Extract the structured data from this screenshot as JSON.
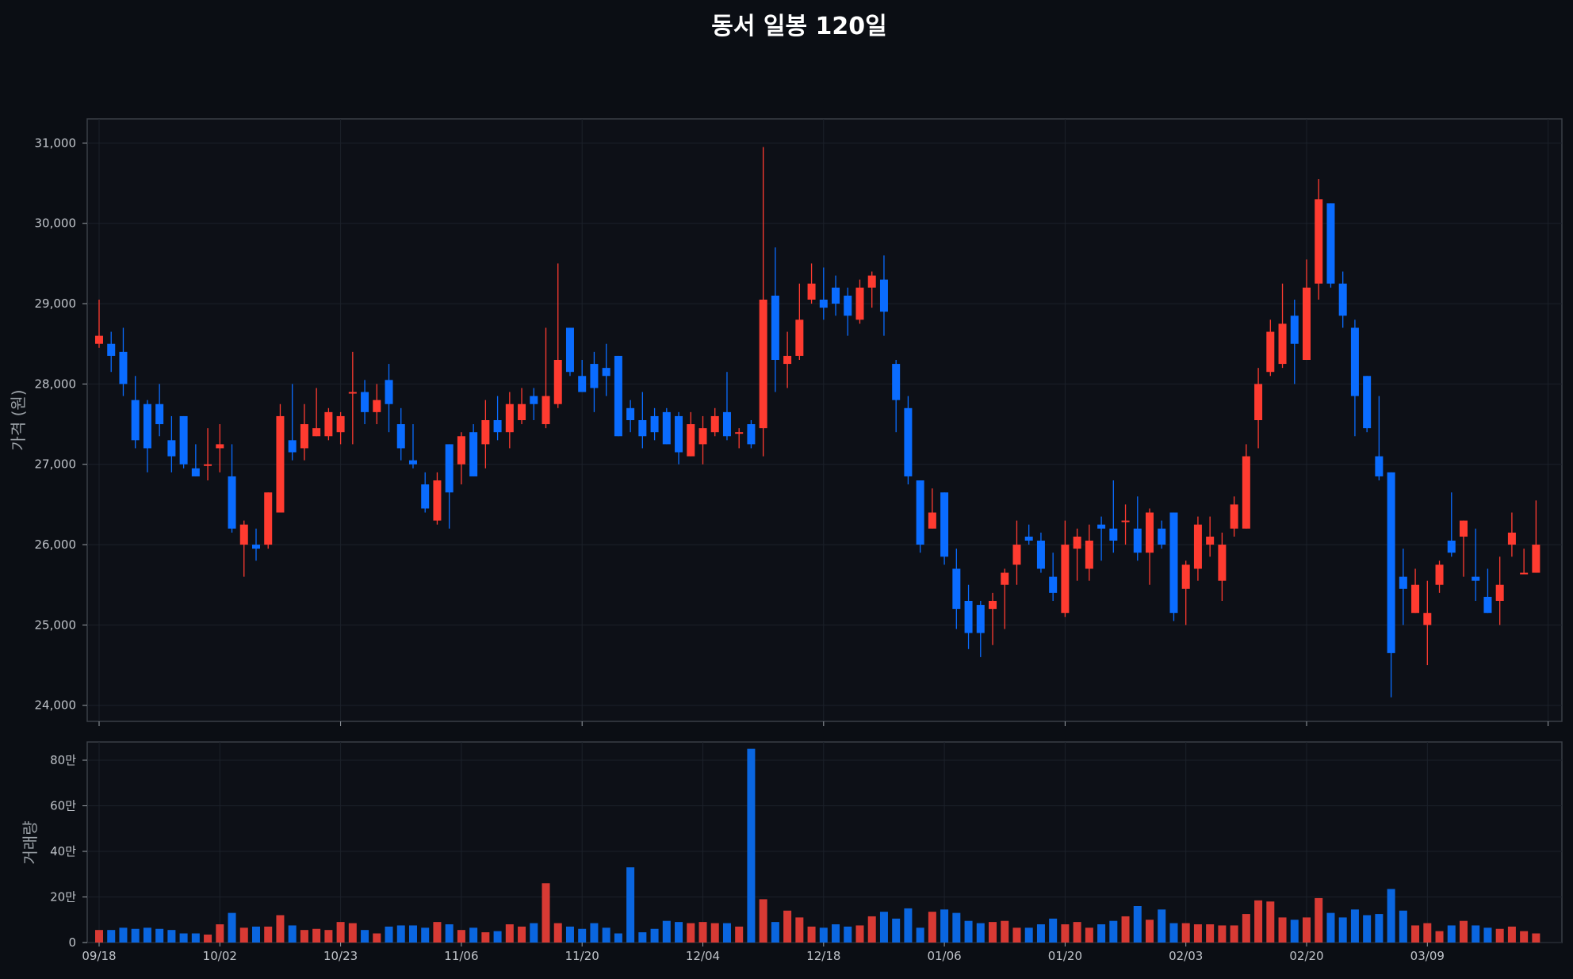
{
  "chart_data": [
    {
      "type": "candlestick",
      "title": "동서 일봉 120일",
      "ylabel": "가격 (원)",
      "ylim": [
        23800,
        31300
      ],
      "yticks": [
        24000,
        25000,
        26000,
        27000,
        28000,
        29000,
        30000,
        31000
      ],
      "ytick_labels": [
        "24,000",
        "25,000",
        "26,000",
        "27,000",
        "28,000",
        "29,000",
        "30,000",
        "31,000"
      ],
      "up_color": "#ff3b30",
      "down_color": "#0a6cff",
      "ohlc": [
        [
          28500,
          29050,
          28450,
          28600
        ],
        [
          28500,
          28650,
          28150,
          28350
        ],
        [
          28400,
          28700,
          27850,
          28000
        ],
        [
          27800,
          28100,
          27200,
          27300
        ],
        [
          27750,
          27800,
          26900,
          27200
        ],
        [
          27750,
          28000,
          27350,
          27500
        ],
        [
          27300,
          27600,
          26900,
          27100
        ],
        [
          27600,
          27600,
          26950,
          27000
        ],
        [
          26950,
          27250,
          26850,
          26850
        ],
        [
          27000,
          27450,
          26800,
          27000
        ],
        [
          27200,
          27500,
          26900,
          27250
        ],
        [
          26850,
          27250,
          26150,
          26200
        ],
        [
          26000,
          26300,
          25600,
          26250
        ],
        [
          26000,
          26200,
          25800,
          25950
        ],
        [
          26000,
          26650,
          25950,
          26650
        ],
        [
          26400,
          27750,
          26400,
          27600
        ],
        [
          27300,
          28000,
          27050,
          27150
        ],
        [
          27200,
          27750,
          27050,
          27500
        ],
        [
          27350,
          27950,
          27350,
          27450
        ],
        [
          27350,
          27700,
          27300,
          27650
        ],
        [
          27400,
          27650,
          27250,
          27600
        ],
        [
          27900,
          28400,
          27250,
          27900
        ],
        [
          27900,
          28050,
          27500,
          27650
        ],
        [
          27650,
          28000,
          27500,
          27800
        ],
        [
          28050,
          28250,
          27400,
          27750
        ],
        [
          27500,
          27700,
          27050,
          27200
        ],
        [
          27050,
          27500,
          26950,
          27000
        ],
        [
          26750,
          26900,
          26400,
          26450
        ],
        [
          26300,
          26900,
          26250,
          26800
        ],
        [
          27250,
          27250,
          26200,
          26650
        ],
        [
          27000,
          27400,
          26750,
          27350
        ],
        [
          27400,
          27500,
          26850,
          26850
        ],
        [
          27250,
          27800,
          26950,
          27550
        ],
        [
          27550,
          27850,
          27300,
          27400
        ],
        [
          27400,
          27900,
          27200,
          27750
        ],
        [
          27550,
          27950,
          27500,
          27750
        ],
        [
          27850,
          27950,
          27550,
          27750
        ],
        [
          27500,
          28700,
          27450,
          27850
        ],
        [
          27750,
          29500,
          27700,
          28300
        ],
        [
          28700,
          28700,
          28100,
          28150
        ],
        [
          28100,
          28300,
          27900,
          27900
        ],
        [
          28250,
          28400,
          27650,
          27950
        ],
        [
          28200,
          28500,
          27850,
          28100
        ],
        [
          28350,
          28350,
          27350,
          27350
        ],
        [
          27700,
          27800,
          27400,
          27550
        ],
        [
          27550,
          27900,
          27200,
          27350
        ],
        [
          27600,
          27700,
          27300,
          27400
        ],
        [
          27650,
          27700,
          27250,
          27250
        ],
        [
          27600,
          27650,
          27000,
          27150
        ],
        [
          27100,
          27650,
          27100,
          27500
        ],
        [
          27250,
          27600,
          27000,
          27450
        ],
        [
          27400,
          27700,
          27350,
          27600
        ],
        [
          27650,
          28150,
          27300,
          27350
        ],
        [
          27400,
          27450,
          27200,
          27400
        ],
        [
          27500,
          27550,
          27200,
          27250
        ],
        [
          27450,
          30950,
          27100,
          29050
        ],
        [
          29100,
          29700,
          27900,
          28300
        ],
        [
          28250,
          28650,
          27950,
          28350
        ],
        [
          28350,
          29250,
          28300,
          28800
        ],
        [
          29050,
          29500,
          29000,
          29250
        ],
        [
          29050,
          29450,
          28800,
          28950
        ],
        [
          29200,
          29350,
          28850,
          29000
        ],
        [
          29100,
          29200,
          28600,
          28850
        ],
        [
          28800,
          29300,
          28750,
          29200
        ],
        [
          29200,
          29400,
          28950,
          29350
        ],
        [
          29300,
          29600,
          28600,
          28900
        ],
        [
          28250,
          28300,
          27400,
          27800
        ],
        [
          27700,
          27850,
          26750,
          26850
        ],
        [
          26800,
          26800,
          25900,
          26000
        ],
        [
          26200,
          26700,
          26200,
          26400
        ],
        [
          26650,
          26650,
          25750,
          25850
        ],
        [
          25700,
          25950,
          24950,
          25200
        ],
        [
          25300,
          25500,
          24700,
          24900
        ],
        [
          25250,
          25300,
          24600,
          24900
        ],
        [
          25200,
          25400,
          24750,
          25300
        ],
        [
          25500,
          25700,
          24950,
          25650
        ],
        [
          25750,
          26300,
          25500,
          26000
        ],
        [
          26100,
          26250,
          26000,
          26050
        ],
        [
          26050,
          26150,
          25650,
          25700
        ],
        [
          25600,
          25900,
          25300,
          25400
        ],
        [
          25150,
          26300,
          25100,
          26000
        ],
        [
          25950,
          26200,
          25550,
          26100
        ],
        [
          25700,
          26250,
          25550,
          26050
        ],
        [
          26250,
          26350,
          25800,
          26200
        ],
        [
          26200,
          26800,
          25900,
          26050
        ],
        [
          26300,
          26500,
          26000,
          26300
        ],
        [
          26200,
          26600,
          25800,
          25900
        ],
        [
          25900,
          26450,
          25500,
          26400
        ],
        [
          26200,
          26300,
          25950,
          26000
        ],
        [
          26400,
          26400,
          25050,
          25150
        ],
        [
          25450,
          25800,
          25000,
          25750
        ],
        [
          25700,
          26350,
          25550,
          26250
        ],
        [
          26000,
          26350,
          25850,
          26100
        ],
        [
          25550,
          26150,
          25300,
          26000
        ],
        [
          26200,
          26600,
          26100,
          26500
        ],
        [
          26200,
          27250,
          26200,
          27100
        ],
        [
          27550,
          28200,
          27200,
          28000
        ],
        [
          28150,
          28800,
          28100,
          28650
        ],
        [
          28250,
          29250,
          28200,
          28750
        ],
        [
          28850,
          29050,
          28000,
          28500
        ],
        [
          28300,
          29550,
          28300,
          29200
        ],
        [
          29250,
          30550,
          29050,
          30300
        ],
        [
          30250,
          30250,
          29200,
          29250
        ],
        [
          29250,
          29400,
          28700,
          28850
        ],
        [
          28700,
          28800,
          27350,
          27850
        ],
        [
          28100,
          28100,
          27400,
          27450
        ],
        [
          27100,
          27850,
          26800,
          26850
        ],
        [
          26900,
          26900,
          24100,
          24650
        ],
        [
          25600,
          25950,
          25000,
          25450
        ],
        [
          25150,
          25700,
          25150,
          25500
        ],
        [
          25000,
          25550,
          24500,
          25150
        ],
        [
          25500,
          25800,
          25400,
          25750
        ],
        [
          26050,
          26650,
          25850,
          25900
        ],
        [
          26100,
          26300,
          25600,
          26300
        ],
        [
          25600,
          26200,
          25300,
          25550
        ],
        [
          25350,
          25700,
          25150,
          25150
        ],
        [
          25300,
          25850,
          25000,
          25500
        ],
        [
          26000,
          26400,
          25850,
          26150
        ],
        [
          25650,
          25950,
          25650,
          25650
        ],
        [
          25650,
          26550,
          25650,
          26000
        ]
      ]
    },
    {
      "type": "bar",
      "ylabel": "거래량",
      "ylim": [
        0,
        880000
      ],
      "yticks": [
        0,
        200000,
        400000,
        600000,
        800000
      ],
      "ytick_labels": [
        "0",
        "20만",
        "40만",
        "60만",
        "80만"
      ],
      "values": [
        55000,
        55000,
        65000,
        60000,
        65000,
        60000,
        55000,
        40000,
        40000,
        35000,
        80000,
        130000,
        65000,
        70000,
        70000,
        120000,
        75000,
        55000,
        60000,
        55000,
        90000,
        85000,
        55000,
        40000,
        70000,
        75000,
        75000,
        65000,
        90000,
        80000,
        55000,
        65000,
        45000,
        50000,
        80000,
        70000,
        85000,
        260000,
        85000,
        70000,
        60000,
        85000,
        65000,
        40000,
        330000,
        45000,
        60000,
        95000,
        90000,
        85000,
        90000,
        85000,
        85000,
        70000,
        850000,
        190000,
        90000,
        140000,
        110000,
        70000,
        65000,
        80000,
        70000,
        75000,
        115000,
        135000,
        105000,
        150000,
        65000,
        135000,
        145000,
        130000,
        95000,
        85000,
        90000,
        95000,
        65000,
        65000,
        80000,
        105000,
        80000,
        90000,
        65000,
        80000,
        95000,
        115000,
        160000,
        100000,
        145000,
        85000,
        85000,
        80000,
        80000,
        75000,
        75000,
        125000,
        185000,
        180000,
        110000,
        100000,
        110000,
        195000,
        130000,
        110000,
        145000,
        120000,
        125000,
        235000,
        140000,
        75000,
        85000,
        50000,
        75000,
        95000,
        75000,
        65000,
        60000,
        70000,
        50000,
        40000
      ]
    }
  ],
  "x_tick_labels": [
    "09/18",
    "10/02",
    "10/23",
    "11/06",
    "11/20",
    "12/04",
    "12/18",
    "01/06",
    "01/20",
    "02/03",
    "02/20",
    "03/09"
  ]
}
